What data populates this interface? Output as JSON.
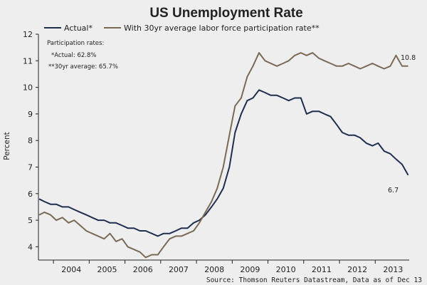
{
  "chart_data": {
    "type": "line",
    "title": "US Unemployment Rate",
    "xlabel": "",
    "ylabel": "Percent",
    "ylim": [
      3.5,
      12
    ],
    "xlim": [
      2003.58,
      2013.95
    ],
    "yticks": [
      4,
      5,
      6,
      7,
      8,
      9,
      10,
      11,
      12
    ],
    "xticks": [
      "2004",
      "2005",
      "2006",
      "2007",
      "2008",
      "2009",
      "2010",
      "2011",
      "2012",
      "2013"
    ],
    "grid": false,
    "legend": "top",
    "annotations": {
      "participation_heading": "Participation rates:",
      "participation_actual": "*Actual: 62.8%",
      "participation_avg": "**30yr average: 65.7%",
      "source": "Source: Thomson Reuters Datastream, Data as of Dec 13",
      "end_actual": "6.7",
      "end_adjusted": "10.8"
    },
    "series": [
      {
        "name": "Actual*",
        "color": "#1f2e4f",
        "x": [
          2003.6,
          2003.75,
          2003.92,
          2004.08,
          2004.25,
          2004.42,
          2004.58,
          2004.75,
          2004.92,
          2005.08,
          2005.25,
          2005.42,
          2005.58,
          2005.75,
          2005.92,
          2006.08,
          2006.25,
          2006.42,
          2006.58,
          2006.75,
          2006.92,
          2007.08,
          2007.25,
          2007.42,
          2007.58,
          2007.75,
          2007.92,
          2008.08,
          2008.25,
          2008.42,
          2008.58,
          2008.75,
          2008.92,
          2009.08,
          2009.25,
          2009.42,
          2009.58,
          2009.75,
          2009.92,
          2010.08,
          2010.25,
          2010.42,
          2010.58,
          2010.75,
          2010.92,
          2011.08,
          2011.25,
          2011.42,
          2011.58,
          2011.75,
          2011.92,
          2012.08,
          2012.25,
          2012.42,
          2012.58,
          2012.75,
          2012.92,
          2013.08,
          2013.25,
          2013.42,
          2013.58,
          2013.75,
          2013.92
        ],
        "values": [
          5.8,
          5.7,
          5.6,
          5.6,
          5.5,
          5.5,
          5.4,
          5.3,
          5.2,
          5.1,
          5.0,
          5.0,
          4.9,
          4.9,
          4.8,
          4.7,
          4.7,
          4.6,
          4.6,
          4.5,
          4.4,
          4.5,
          4.5,
          4.6,
          4.7,
          4.7,
          4.9,
          5.0,
          5.2,
          5.5,
          5.8,
          6.2,
          7.0,
          8.3,
          9.0,
          9.5,
          9.6,
          9.9,
          9.8,
          9.7,
          9.7,
          9.6,
          9.5,
          9.6,
          9.6,
          9.0,
          9.1,
          9.1,
          9.0,
          8.9,
          8.6,
          8.3,
          8.2,
          8.2,
          8.1,
          7.9,
          7.8,
          7.9,
          7.6,
          7.5,
          7.3,
          7.1,
          6.7
        ]
      },
      {
        "name": "With 30yr average labor force participation rate**",
        "color": "#7a6a55",
        "x": [
          2003.6,
          2003.75,
          2003.92,
          2004.08,
          2004.25,
          2004.42,
          2004.58,
          2004.75,
          2004.92,
          2005.08,
          2005.25,
          2005.42,
          2005.58,
          2005.75,
          2005.92,
          2006.08,
          2006.25,
          2006.42,
          2006.58,
          2006.75,
          2006.92,
          2007.08,
          2007.25,
          2007.42,
          2007.58,
          2007.75,
          2007.92,
          2008.08,
          2008.25,
          2008.42,
          2008.58,
          2008.75,
          2008.92,
          2009.08,
          2009.25,
          2009.42,
          2009.58,
          2009.75,
          2009.92,
          2010.08,
          2010.25,
          2010.42,
          2010.58,
          2010.75,
          2010.92,
          2011.08,
          2011.25,
          2011.42,
          2011.58,
          2011.75,
          2011.92,
          2012.08,
          2012.25,
          2012.42,
          2012.58,
          2012.75,
          2012.92,
          2013.08,
          2013.25,
          2013.42,
          2013.58,
          2013.75,
          2013.92
        ],
        "values": [
          5.2,
          5.3,
          5.2,
          5.0,
          5.1,
          4.9,
          5.0,
          4.8,
          4.6,
          4.5,
          4.4,
          4.3,
          4.5,
          4.2,
          4.3,
          4.0,
          3.9,
          3.8,
          3.6,
          3.7,
          3.7,
          4.0,
          4.3,
          4.4,
          4.4,
          4.5,
          4.6,
          4.9,
          5.3,
          5.7,
          6.2,
          7.0,
          8.2,
          9.3,
          9.6,
          10.4,
          10.8,
          11.3,
          11.0,
          10.9,
          10.8,
          10.9,
          11.0,
          11.2,
          11.3,
          11.2,
          11.3,
          11.1,
          11.0,
          10.9,
          10.8,
          10.8,
          10.9,
          10.8,
          10.7,
          10.8,
          10.9,
          10.8,
          10.7,
          10.8,
          11.2,
          10.8,
          10.8
        ]
      }
    ]
  }
}
